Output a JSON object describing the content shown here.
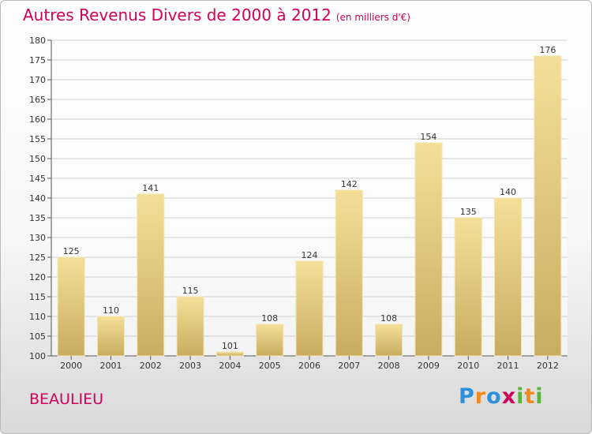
{
  "title": "Autres Revenus Divers de 2000 à 2012",
  "unit": "(en milliers d'€)",
  "city": "BEAULIEU",
  "logo": {
    "letters": [
      {
        "ch": "P",
        "color": "#2f8fd8"
      },
      {
        "ch": "r",
        "color": "#f08a1c"
      },
      {
        "ch": "o",
        "color": "#2f8fd8"
      },
      {
        "ch": "x",
        "color": "#d1005b"
      },
      {
        "ch": "i",
        "color": "#59b33c"
      },
      {
        "ch": "t",
        "color": "#f08a1c"
      },
      {
        "ch": "i",
        "color": "#59b33c"
      }
    ]
  },
  "colors": {
    "title": "#d1005b",
    "bar_top": "#f5df98",
    "bar_bottom": "#c8ac60",
    "grid": "#d0d0d0"
  },
  "chart_data": {
    "type": "bar",
    "title": "Autres Revenus Divers de 2000 à 2012",
    "subtitle": "(en milliers d'€)",
    "xlabel": "",
    "ylabel": "",
    "ylim": [
      100,
      180
    ],
    "ytick_step": 5,
    "grid": true,
    "categories": [
      "2000",
      "2001",
      "2002",
      "2003",
      "2004",
      "2005",
      "2006",
      "2007",
      "2008",
      "2009",
      "2010",
      "2011",
      "2012"
    ],
    "values": [
      125,
      110,
      141,
      115,
      101,
      108,
      124,
      142,
      108,
      154,
      135,
      140,
      176
    ]
  }
}
